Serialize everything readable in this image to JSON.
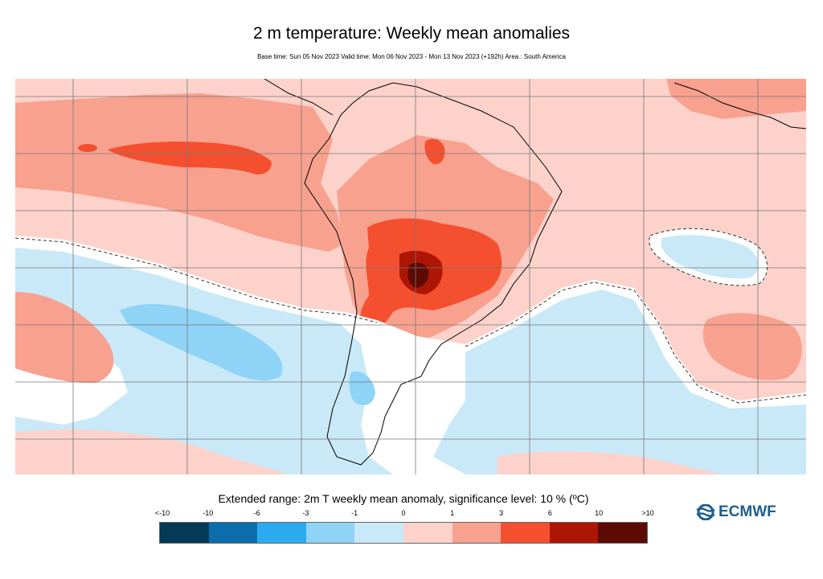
{
  "header": {
    "title": "2 m temperature: Weekly mean anomalies",
    "subtitle": "Base time: Sun 05 Nov 2023 Valid time: Mon 06 Nov 2023 - Mon 13 Nov 2023 (+192h) Area : South America"
  },
  "legend": {
    "title": "Extended range: 2m T weekly mean anomaly, significance level: 10 % (ºC)",
    "ticks": [
      "<-10",
      "-10",
      "-6",
      "-3",
      "-1",
      "0",
      "1",
      "3",
      "6",
      "10",
      ">10"
    ],
    "colors": [
      "#053a56",
      "#0a6dac",
      "#2aabf0",
      "#8fd3f6",
      "#c9e9f8",
      "#fdd2cb",
      "#f8a18f",
      "#f44f2f",
      "#ad1604",
      "#5e0a04"
    ]
  },
  "logo": {
    "text": "ECMWF",
    "icon": "ecmwf-logo-icon"
  },
  "map": {
    "area": "South America",
    "colors": {
      "ocean_warm": "#fdd2cb",
      "moderate_warm": "#f8a18f",
      "strong_warm": "#f44f2f",
      "very_strong_warm": "#ad1604",
      "extreme_warm": "#5e0a04",
      "slight_cool": "#c9e9f8",
      "moderate_cool": "#8fd3f6",
      "neutral": "#ffffff",
      "coastline": "#000000",
      "gridline": "#777777"
    }
  }
}
